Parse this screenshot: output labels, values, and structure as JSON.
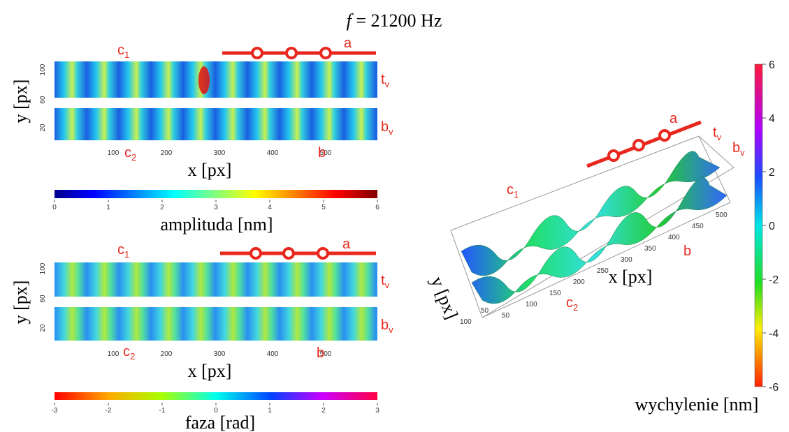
{
  "title": {
    "var": "f",
    "rest": " = 21200 Hz"
  },
  "amplitude_map": {
    "y_label": "y [px]",
    "x_label": "x [px]",
    "yticks": [
      "100",
      "60",
      "20"
    ],
    "xticks": [
      "100",
      "200",
      "300",
      "400",
      "500"
    ],
    "labels": {
      "a": "a",
      "b": "b",
      "c1": {
        "base": "c",
        "sub": "1"
      },
      "c2": {
        "base": "c",
        "sub": "2"
      },
      "tv": {
        "base": "t",
        "sub": "v"
      },
      "bv": {
        "base": "b",
        "sub": "v"
      }
    }
  },
  "amplitude_colorbar": {
    "label": "amplituda [nm]",
    "ticks": [
      "0",
      "1",
      "2",
      "3",
      "4",
      "5",
      "6"
    ]
  },
  "phase_map": {
    "y_label": "y [px]",
    "x_label": "x [px]",
    "yticks": [
      "100",
      "60",
      "20"
    ],
    "xticks": [
      "100",
      "200",
      "300",
      "400",
      "500"
    ],
    "labels": {
      "a": "a",
      "b": "b",
      "c1": {
        "base": "c",
        "sub": "1"
      },
      "c2": {
        "base": "c",
        "sub": "2"
      },
      "tv": {
        "base": "t",
        "sub": "v"
      },
      "bv": {
        "base": "b",
        "sub": "v"
      }
    }
  },
  "phase_colorbar": {
    "label": "faza [rad]",
    "ticks": [
      "-3",
      "-2",
      "-1",
      "0",
      "1",
      "2",
      "3"
    ]
  },
  "surface_3d": {
    "x_label": "x [px]",
    "y_label": "y [px]",
    "xticks": [
      "50",
      "100",
      "150",
      "200",
      "250",
      "300",
      "350",
      "400",
      "450",
      "500"
    ],
    "yticks": [
      "50",
      "100"
    ],
    "labels": {
      "a": "a",
      "b": "b",
      "c1": {
        "base": "c",
        "sub": "1"
      },
      "c2": {
        "base": "c",
        "sub": "2"
      },
      "tv": {
        "base": "t",
        "sub": "v"
      },
      "bv": {
        "base": "b",
        "sub": "v"
      }
    }
  },
  "deflection_colorbar": {
    "label": "wychylenie [nm]",
    "ticks": [
      "6",
      "4",
      "2",
      "0",
      "-2",
      "-4",
      "-6"
    ]
  }
}
